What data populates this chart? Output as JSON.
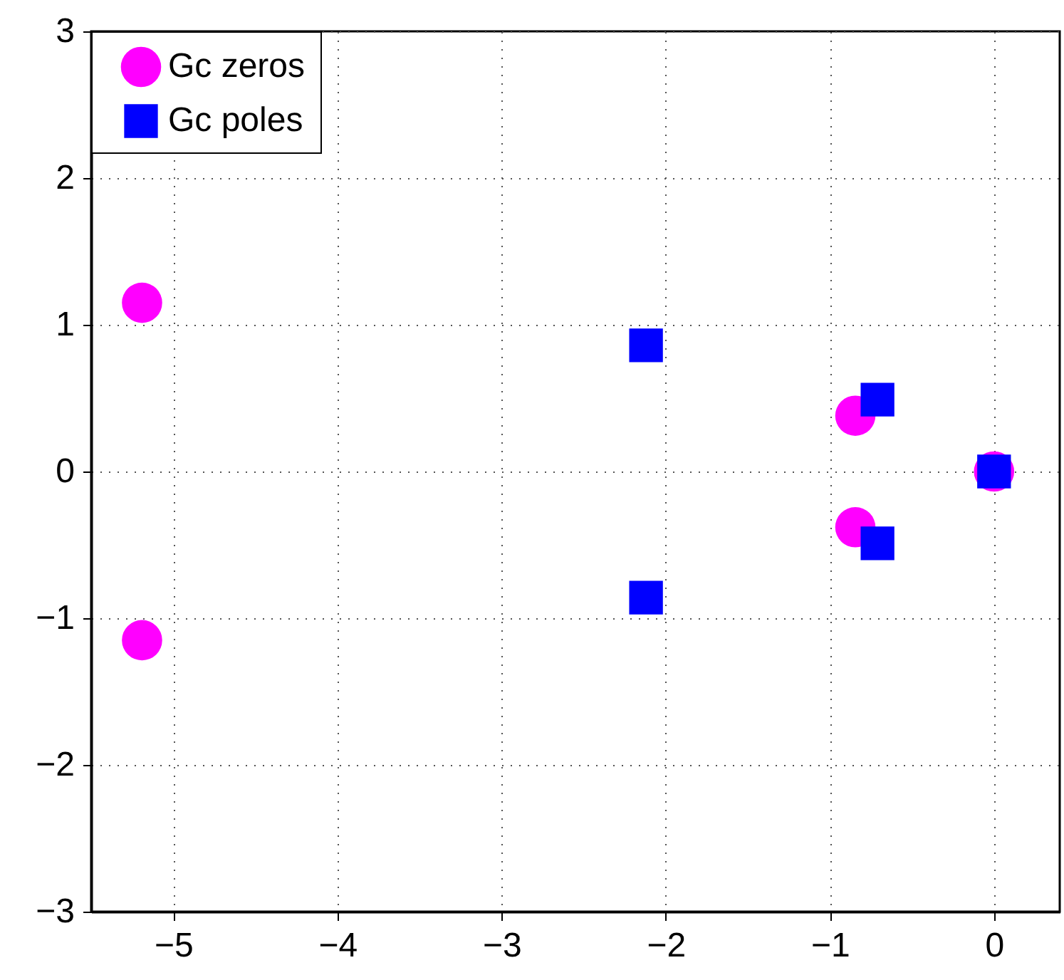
{
  "chart_data": {
    "type": "scatter",
    "series": [
      {
        "name": "Gc zeros",
        "color": "#ff00ff",
        "marker": "circle",
        "x": [
          -5.19,
          -5.19,
          -0.845,
          -0.845,
          0
        ],
        "values": [
          1.15,
          -1.15,
          0.38,
          -0.38,
          0
        ]
      },
      {
        "name": "Gc poles",
        "color": "#0000ff",
        "marker": "square",
        "x": [
          -2.12,
          -2.12,
          -0.71,
          -0.71,
          0
        ],
        "values": [
          0.86,
          -0.86,
          0.49,
          -0.49,
          0
        ]
      }
    ],
    "xlim": [
      -5.5,
      0.4
    ],
    "xticks": [
      -5,
      -4,
      -3,
      -2,
      -1,
      0
    ],
    "ylim": [
      -3,
      3
    ],
    "yticks": [
      -3,
      -2,
      -1,
      0,
      1,
      2,
      3
    ],
    "grid": true,
    "legend": "top left"
  }
}
